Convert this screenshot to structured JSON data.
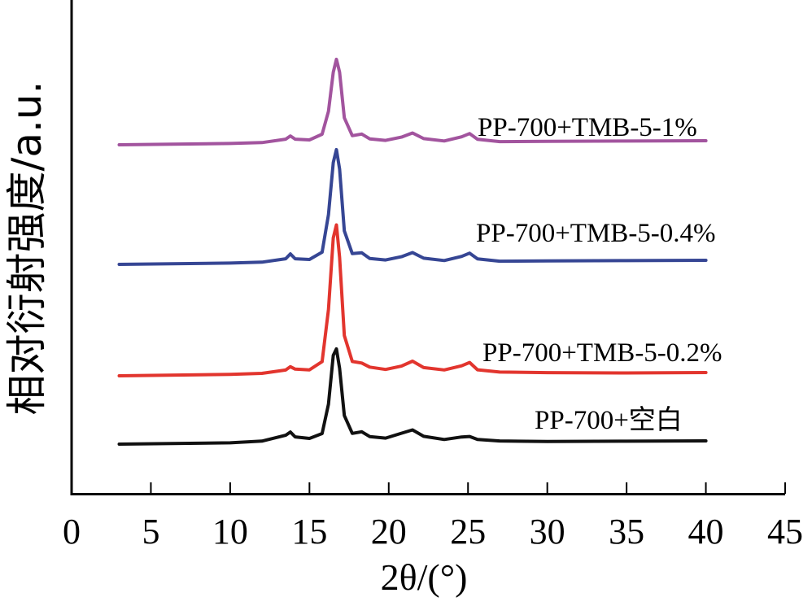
{
  "chart_data": {
    "type": "line",
    "title": "",
    "xlabel": "2θ/(°)",
    "ylabel": "相对衍射强度/a.u.",
    "xlim": [
      0,
      45
    ],
    "xticks": [
      0,
      5,
      10,
      15,
      20,
      25,
      30,
      35,
      40,
      45
    ],
    "yticks_shown": false,
    "grid": false,
    "legend": "inline labels beside each curve",
    "x": [
      3,
      10,
      12,
      13.5,
      13.8,
      14.1,
      15,
      15.8,
      16.2,
      16.5,
      16.7,
      16.9,
      17.2,
      17.7,
      18.3,
      18.8,
      19.8,
      20.8,
      21.5,
      22.2,
      23.5,
      24.6,
      25.1,
      25.6,
      27,
      30,
      35,
      40
    ],
    "series": [
      {
        "name": "PP-700+TMB-5-1%",
        "color": "#a2549e",
        "values": [
          0,
          0.5,
          1.0,
          3.0,
          5.0,
          3.0,
          2.5,
          6.0,
          20.0,
          44.0,
          52.0,
          44.0,
          16.0,
          5.0,
          6.0,
          3.0,
          2.0,
          4.0,
          6.5,
          3.0,
          1.5,
          4.0,
          6.0,
          2.5,
          1.0,
          1.0,
          1.0,
          1.0
        ]
      },
      {
        "name": "PP-700+TMB-5-0.4%",
        "color": "#364694",
        "values": [
          0,
          0.5,
          1.0,
          3.0,
          6.0,
          3.0,
          2.5,
          7.0,
          30.0,
          62.0,
          70.0,
          58.0,
          20.0,
          6.0,
          6.5,
          3.0,
          2.0,
          4.0,
          6.5,
          3.0,
          1.5,
          4.0,
          6.0,
          2.5,
          1.0,
          1.0,
          1.0,
          1.0
        ]
      },
      {
        "name": "PP-700+TMB-5-0.2%",
        "color": "#e2352e",
        "values": [
          0,
          0.5,
          1.0,
          3.0,
          5.0,
          3.5,
          3.0,
          8.0,
          40.0,
          84.0,
          92.0,
          72.0,
          24.0,
          8.0,
          7.0,
          4.5,
          3.0,
          5.0,
          8.0,
          4.0,
          2.5,
          5.0,
          7.0,
          2.5,
          1.0,
          0.5,
          0,
          0
        ]
      },
      {
        "name": "PP-700+空白",
        "color": "#111111",
        "values": [
          0,
          0.5,
          1.5,
          5.0,
          7.0,
          4.0,
          3.0,
          6.0,
          24.0,
          54.0,
          58.0,
          46.0,
          17.0,
          6.0,
          7.0,
          4.0,
          3.0,
          6.0,
          8.0,
          4.0,
          2.0,
          3.5,
          3.8,
          2.0,
          1.0,
          0.5,
          0.5,
          0.5
        ]
      }
    ]
  }
}
